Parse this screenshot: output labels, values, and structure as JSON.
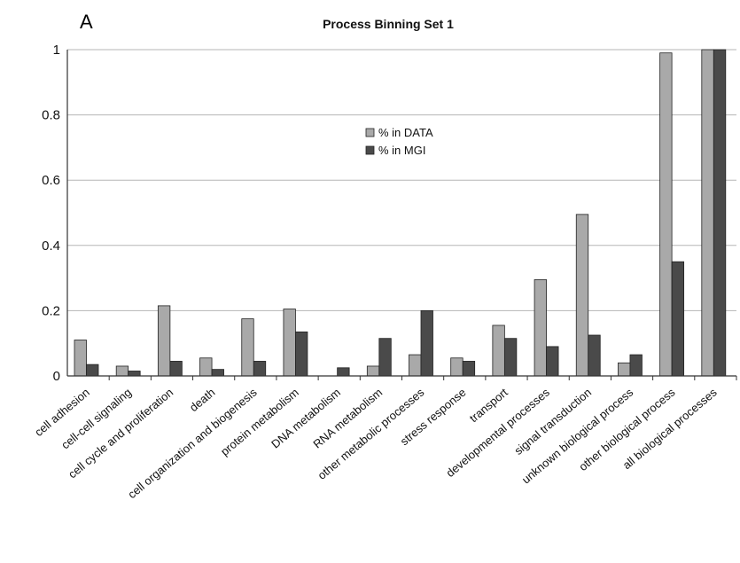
{
  "panel_label": "A",
  "chart_data": {
    "type": "bar",
    "title": "Process Binning Set 1",
    "xlabel": "",
    "ylabel": "",
    "ylim": [
      0,
      1
    ],
    "yticks": [
      "0",
      "0.2",
      "0.4",
      "0.6",
      "0.8",
      "1"
    ],
    "grid": true,
    "legend_position": "center",
    "categories": [
      "cell adhesion",
      "cell-cell signaling",
      "cell cycle and proliferation",
      "death",
      "cell organization and biogenesis",
      "protein metabolism",
      "DNA metabolism",
      "RNA metabolism",
      "other metabolic processes",
      "stress response",
      "transport",
      "developmental processes",
      "signal transduction",
      "unknown biological process",
      "other biological process",
      "all biological processes"
    ],
    "series": [
      {
        "name": "% in DATA",
        "color": "#a9a9a9",
        "values": [
          0.11,
          0.03,
          0.215,
          0.055,
          0.175,
          0.205,
          0.0,
          0.03,
          0.065,
          0.055,
          0.155,
          0.295,
          0.495,
          0.04,
          0.99,
          1.0
        ]
      },
      {
        "name": "% in MGI",
        "color": "#4a4a4a",
        "values": [
          0.035,
          0.015,
          0.045,
          0.02,
          0.045,
          0.135,
          0.025,
          0.115,
          0.2,
          0.045,
          0.115,
          0.09,
          0.125,
          0.065,
          0.35,
          1.0
        ]
      }
    ]
  }
}
